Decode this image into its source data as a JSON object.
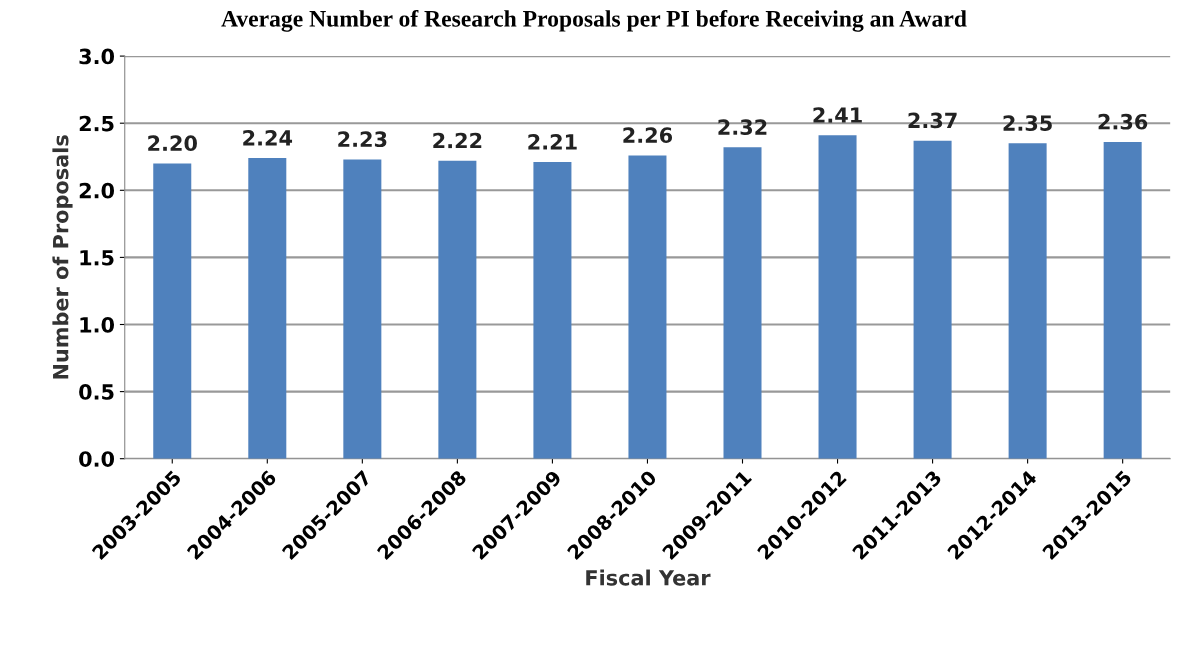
{
  "chart_data": {
    "type": "bar",
    "title": "Average Number of Research Proposals per PI before Receiving an Award",
    "xlabel": "Fiscal Year",
    "ylabel": "Number of Proposals",
    "categories": [
      "2003-2005",
      "2004-2006",
      "2005-2007",
      "2006-2008",
      "2007-2009",
      "2008-2010",
      "2009-2011",
      "2010-2012",
      "2011-2013",
      "2012-2014",
      "2013-2015"
    ],
    "values": [
      2.2,
      2.24,
      2.23,
      2.22,
      2.21,
      2.26,
      2.32,
      2.41,
      2.37,
      2.35,
      2.36
    ],
    "value_labels": [
      "2.20",
      "2.24",
      "2.23",
      "2.22",
      "2.21",
      "2.26",
      "2.32",
      "2.41",
      "2.37",
      "2.35",
      "2.36"
    ],
    "color": "#4f81bd",
    "ylim": [
      0,
      3
    ],
    "yticks": [
      {
        "value": 0,
        "label": "0.0"
      },
      {
        "value": 0.5,
        "label": "0.5"
      },
      {
        "value": 1,
        "label": "1.0"
      },
      {
        "value": 1.5,
        "label": "1.5"
      },
      {
        "value": 2,
        "label": "2.0"
      },
      {
        "value": 2.5,
        "label": "2.5"
      },
      {
        "value": 3,
        "label": "3.0"
      }
    ],
    "grid": "y"
  }
}
